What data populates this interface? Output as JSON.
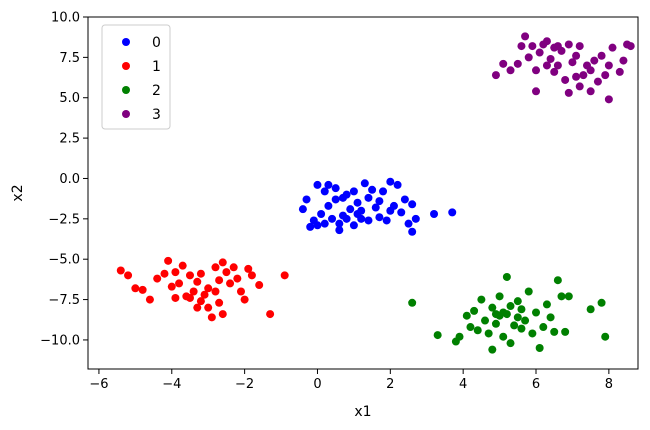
{
  "chart_data": {
    "type": "scatter",
    "title": "",
    "xlabel": "x1",
    "ylabel": "x2",
    "xlim": [
      -6.3,
      8.8
    ],
    "ylim": [
      -11.8,
      10.0
    ],
    "xticks": [
      -6,
      -4,
      -2,
      0,
      2,
      4,
      6,
      8
    ],
    "xtick_labels": [
      "−6",
      "−4",
      "−2",
      "0",
      "2",
      "4",
      "6",
      "8"
    ],
    "yticks": [
      -10,
      -7.5,
      -5,
      -2.5,
      0,
      2.5,
      5,
      7.5,
      10
    ],
    "ytick_labels": [
      "−10.0",
      "−7.5",
      "−5.0",
      "−2.5",
      "0.0",
      "2.5",
      "5.0",
      "7.5",
      "10.0"
    ],
    "grid": false,
    "legend_position": "top-left",
    "series": [
      {
        "name": "0",
        "color": "#0000ff",
        "points": [
          [
            -0.4,
            -1.9
          ],
          [
            -0.3,
            -1.3
          ],
          [
            -0.2,
            -3.0
          ],
          [
            -0.1,
            -2.6
          ],
          [
            0.0,
            -0.4
          ],
          [
            0.0,
            -2.9
          ],
          [
            0.1,
            -2.2
          ],
          [
            0.2,
            -0.8
          ],
          [
            0.2,
            -2.8
          ],
          [
            0.3,
            -1.7
          ],
          [
            0.3,
            -0.4
          ],
          [
            0.4,
            -2.5
          ],
          [
            0.5,
            -1.3
          ],
          [
            0.5,
            -0.6
          ],
          [
            0.6,
            -2.8
          ],
          [
            0.6,
            -3.2
          ],
          [
            0.7,
            -2.3
          ],
          [
            0.8,
            -1.0
          ],
          [
            0.8,
            -2.5
          ],
          [
            0.9,
            -1.9
          ],
          [
            1.0,
            -2.9
          ],
          [
            1.0,
            -0.8
          ],
          [
            1.1,
            -1.5
          ],
          [
            1.2,
            -2.5
          ],
          [
            1.2,
            -2.0
          ],
          [
            1.3,
            -0.3
          ],
          [
            1.4,
            -1.2
          ],
          [
            1.4,
            -2.6
          ],
          [
            1.5,
            -0.7
          ],
          [
            1.6,
            -1.8
          ],
          [
            1.7,
            -2.4
          ],
          [
            1.7,
            -1.4
          ],
          [
            1.8,
            -0.8
          ],
          [
            1.9,
            -2.6
          ],
          [
            2.0,
            -0.2
          ],
          [
            2.0,
            -2.0
          ],
          [
            2.1,
            -1.7
          ],
          [
            2.2,
            -0.4
          ],
          [
            2.3,
            -2.1
          ],
          [
            2.4,
            -1.3
          ],
          [
            2.5,
            -2.8
          ],
          [
            2.6,
            -3.3
          ],
          [
            2.6,
            -1.6
          ],
          [
            2.7,
            -2.5
          ],
          [
            3.2,
            -2.2
          ],
          [
            3.7,
            -2.1
          ],
          [
            0.7,
            -1.2
          ],
          [
            1.1,
            -2.2
          ]
        ]
      },
      {
        "name": "1",
        "color": "#ff0000",
        "points": [
          [
            -5.4,
            -5.7
          ],
          [
            -5.2,
            -6.0
          ],
          [
            -5.0,
            -6.8
          ],
          [
            -4.8,
            -6.9
          ],
          [
            -4.6,
            -7.5
          ],
          [
            -4.4,
            -6.2
          ],
          [
            -4.2,
            -5.9
          ],
          [
            -4.1,
            -5.1
          ],
          [
            -4.0,
            -6.7
          ],
          [
            -3.9,
            -5.8
          ],
          [
            -3.8,
            -6.5
          ],
          [
            -3.7,
            -5.4
          ],
          [
            -3.6,
            -7.3
          ],
          [
            -3.5,
            -6.0
          ],
          [
            -3.4,
            -7.0
          ],
          [
            -3.3,
            -6.4
          ],
          [
            -3.2,
            -7.6
          ],
          [
            -3.2,
            -5.9
          ],
          [
            -3.1,
            -7.2
          ],
          [
            -3.0,
            -6.8
          ],
          [
            -3.0,
            -8.0
          ],
          [
            -2.9,
            -8.6
          ],
          [
            -2.8,
            -5.5
          ],
          [
            -2.8,
            -7.0
          ],
          [
            -2.7,
            -6.3
          ],
          [
            -2.6,
            -5.2
          ],
          [
            -2.6,
            -8.4
          ],
          [
            -2.5,
            -5.8
          ],
          [
            -2.4,
            -6.5
          ],
          [
            -2.3,
            -5.5
          ],
          [
            -2.2,
            -6.2
          ],
          [
            -2.1,
            -7.0
          ],
          [
            -2.0,
            -7.5
          ],
          [
            -1.9,
            -5.6
          ],
          [
            -1.8,
            -6.0
          ],
          [
            -1.6,
            -6.6
          ],
          [
            -1.3,
            -8.4
          ],
          [
            -0.9,
            -6.0
          ],
          [
            -3.5,
            -7.4
          ],
          [
            -3.9,
            -7.4
          ],
          [
            -2.7,
            -7.7
          ],
          [
            -3.3,
            -8.0
          ]
        ]
      },
      {
        "name": "2",
        "color": "#008000",
        "points": [
          [
            2.6,
            -7.7
          ],
          [
            3.3,
            -9.7
          ],
          [
            3.8,
            -10.1
          ],
          [
            3.9,
            -9.8
          ],
          [
            4.1,
            -8.5
          ],
          [
            4.2,
            -9.2
          ],
          [
            4.3,
            -8.2
          ],
          [
            4.4,
            -9.4
          ],
          [
            4.5,
            -7.5
          ],
          [
            4.6,
            -8.8
          ],
          [
            4.7,
            -9.6
          ],
          [
            4.8,
            -8.0
          ],
          [
            4.8,
            -10.6
          ],
          [
            4.9,
            -9.0
          ],
          [
            5.0,
            -7.3
          ],
          [
            5.0,
            -8.5
          ],
          [
            5.1,
            -9.8
          ],
          [
            5.2,
            -6.1
          ],
          [
            5.2,
            -8.4
          ],
          [
            5.3,
            -7.9
          ],
          [
            5.3,
            -10.2
          ],
          [
            5.4,
            -9.1
          ],
          [
            5.5,
            -8.6
          ],
          [
            5.5,
            -7.6
          ],
          [
            5.6,
            -9.3
          ],
          [
            5.6,
            -8.1
          ],
          [
            5.7,
            -8.8
          ],
          [
            5.8,
            -7.0
          ],
          [
            5.9,
            -9.6
          ],
          [
            6.0,
            -8.3
          ],
          [
            6.1,
            -10.5
          ],
          [
            6.2,
            -9.2
          ],
          [
            6.3,
            -7.8
          ],
          [
            6.4,
            -8.6
          ],
          [
            6.5,
            -9.5
          ],
          [
            6.6,
            -6.3
          ],
          [
            6.7,
            -7.3
          ],
          [
            6.8,
            -9.5
          ],
          [
            6.9,
            -7.3
          ],
          [
            7.5,
            -8.1
          ],
          [
            7.8,
            -7.7
          ],
          [
            7.9,
            -9.8
          ],
          [
            5.1,
            -8.3
          ],
          [
            4.9,
            -8.4
          ]
        ]
      },
      {
        "name": "3",
        "color": "#800080",
        "points": [
          [
            4.9,
            6.4
          ],
          [
            5.1,
            7.1
          ],
          [
            5.3,
            6.7
          ],
          [
            5.5,
            7.1
          ],
          [
            5.6,
            8.2
          ],
          [
            5.7,
            8.8
          ],
          [
            5.8,
            7.5
          ],
          [
            5.9,
            8.2
          ],
          [
            6.0,
            5.4
          ],
          [
            6.0,
            6.7
          ],
          [
            6.1,
            7.8
          ],
          [
            6.2,
            8.3
          ],
          [
            6.3,
            7.0
          ],
          [
            6.3,
            8.5
          ],
          [
            6.4,
            7.4
          ],
          [
            6.5,
            6.6
          ],
          [
            6.6,
            8.2
          ],
          [
            6.6,
            7.0
          ],
          [
            6.7,
            7.9
          ],
          [
            6.8,
            6.1
          ],
          [
            6.9,
            8.3
          ],
          [
            6.9,
            5.3
          ],
          [
            7.0,
            7.2
          ],
          [
            7.1,
            7.6
          ],
          [
            7.2,
            5.7
          ],
          [
            7.2,
            8.2
          ],
          [
            7.3,
            6.4
          ],
          [
            7.4,
            7.0
          ],
          [
            7.5,
            5.4
          ],
          [
            7.5,
            6.7
          ],
          [
            7.6,
            7.3
          ],
          [
            7.7,
            6.0
          ],
          [
            7.8,
            7.6
          ],
          [
            7.9,
            6.4
          ],
          [
            8.0,
            4.9
          ],
          [
            8.0,
            7.0
          ],
          [
            8.1,
            8.1
          ],
          [
            8.3,
            6.6
          ],
          [
            8.4,
            7.3
          ],
          [
            8.5,
            8.3
          ],
          [
            8.6,
            8.2
          ],
          [
            7.1,
            6.3
          ],
          [
            6.5,
            8.1
          ]
        ]
      }
    ]
  }
}
